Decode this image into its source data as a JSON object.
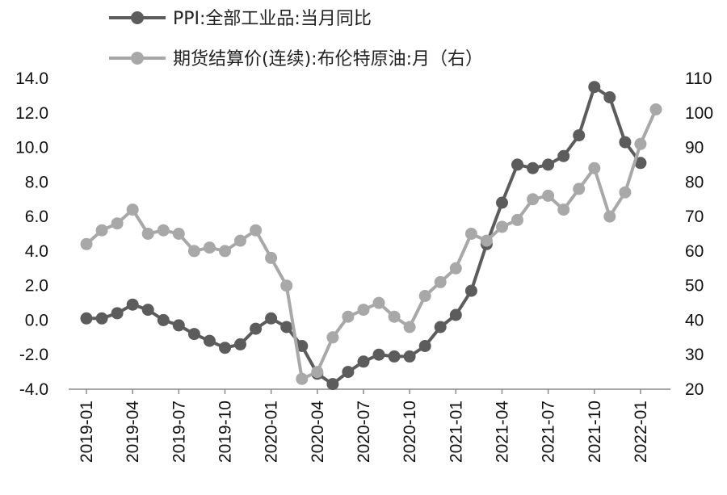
{
  "chart_data": {
    "type": "line",
    "categories": [
      "2019-01",
      "2019-02",
      "2019-03",
      "2019-04",
      "2019-05",
      "2019-06",
      "2019-07",
      "2019-08",
      "2019-09",
      "2019-10",
      "2019-11",
      "2019-12",
      "2020-01",
      "2020-02",
      "2020-03",
      "2020-04",
      "2020-05",
      "2020-06",
      "2020-07",
      "2020-08",
      "2020-09",
      "2020-10",
      "2020-11",
      "2020-12",
      "2021-01",
      "2021-02",
      "2021-03",
      "2021-04",
      "2021-05",
      "2021-06",
      "2021-07",
      "2021-08",
      "2021-09",
      "2021-10",
      "2021-11",
      "2021-12",
      "2022-01",
      "2022-02"
    ],
    "x_tick_labels": [
      "2019-01",
      "2019-04",
      "2019-07",
      "2019-10",
      "2020-01",
      "2020-04",
      "2020-07",
      "2020-10",
      "2021-01",
      "2021-04",
      "2021-07",
      "2021-10",
      "2022-01"
    ],
    "y_left": {
      "ylim": [
        -4,
        14
      ],
      "ticks": [
        "14.0",
        "12.0",
        "10.0",
        "8.0",
        "6.0",
        "4.0",
        "2.0",
        "0.0",
        "-2.0",
        "-4.0"
      ]
    },
    "y_right": {
      "ylim": [
        20,
        110
      ],
      "ticks": [
        "110",
        "100",
        "90",
        "80",
        "70",
        "60",
        "50",
        "40",
        "30",
        "20"
      ]
    },
    "grid": false,
    "legend_position": "top",
    "series": [
      {
        "name": "PPI:全部工业品:当月同比",
        "axis": "left",
        "color": "#5c5c5c",
        "values": [
          0.1,
          0.1,
          0.4,
          0.9,
          0.6,
          0.0,
          -0.3,
          -0.8,
          -1.2,
          -1.6,
          -1.4,
          -0.5,
          0.1,
          -0.4,
          -1.5,
          -3.1,
          -3.7,
          -3.0,
          -2.4,
          -2.0,
          -2.1,
          -2.1,
          -1.5,
          -0.4,
          0.3,
          1.7,
          4.4,
          6.8,
          9.0,
          8.8,
          9.0,
          9.5,
          10.7,
          13.5,
          12.9,
          10.3,
          9.1,
          null
        ]
      },
      {
        "name": "期货结算价(连续):布伦特原油:月（右）",
        "axis": "right",
        "color": "#a8a8a8",
        "values": [
          62,
          66,
          68,
          72,
          65,
          66,
          65,
          60,
          61,
          60,
          63,
          66,
          58,
          50,
          23,
          25,
          35,
          41,
          43,
          45,
          41,
          38,
          47,
          51,
          55,
          65,
          63,
          67,
          69,
          75,
          76,
          72,
          78,
          84,
          70,
          77,
          91,
          101
        ]
      }
    ]
  }
}
